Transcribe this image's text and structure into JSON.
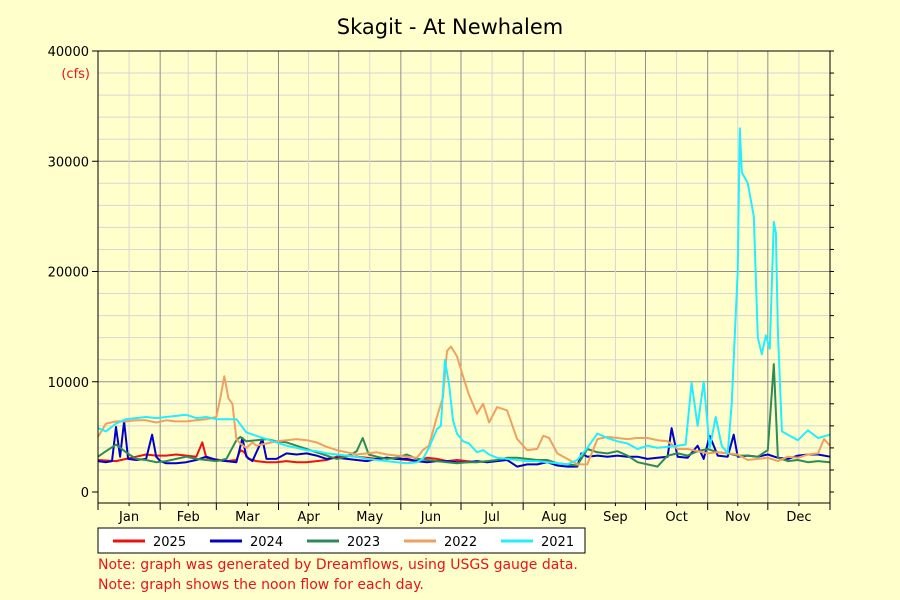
{
  "chart_data": {
    "type": "line",
    "title": "Skagit - At Newhalem",
    "ylabel": "(cfs)",
    "xlabel": "",
    "ylim": [
      0,
      40000
    ],
    "yticks": [
      0,
      10000,
      20000,
      30000,
      40000
    ],
    "ytick_labels": [
      "0",
      "10000",
      "20000",
      "30000",
      "40000"
    ],
    "x_unit": "day of year",
    "xlim": [
      1,
      366
    ],
    "months": [
      "Jan",
      "Feb",
      "Mar",
      "Apr",
      "May",
      "Jun",
      "Jul",
      "Aug",
      "Sep",
      "Oct",
      "Nov",
      "Dec"
    ],
    "grid": true,
    "legend_position": "bottom-left",
    "series": [
      {
        "name": "2025",
        "color": "#ee1111",
        "x": [
          1,
          10,
          15,
          20,
          25,
          30,
          35,
          40,
          45,
          50,
          53,
          55,
          58,
          62,
          65,
          70,
          72,
          74,
          76,
          80,
          85,
          90,
          95,
          100,
          105,
          110,
          115,
          120,
          125,
          130,
          135,
          140,
          145,
          150,
          155,
          160,
          165,
          170,
          175,
          180,
          185,
          190
        ],
        "y": [
          2900,
          2800,
          3000,
          3200,
          3400,
          3300,
          3300,
          3400,
          3300,
          3200,
          4500,
          3100,
          3000,
          2900,
          2800,
          2900,
          3800,
          3600,
          3000,
          2800,
          2700,
          2700,
          2800,
          2700,
          2700,
          2800,
          2900,
          3200,
          3300,
          3200,
          3100,
          3000,
          3100,
          3000,
          2900,
          2800,
          3100,
          3000,
          2800,
          2900,
          2800,
          2700
        ]
      },
      {
        "name": "2024",
        "color": "#0000cc",
        "x": [
          1,
          5,
          8,
          10,
          12,
          14,
          16,
          20,
          25,
          28,
          30,
          32,
          35,
          40,
          45,
          50,
          55,
          60,
          65,
          70,
          73,
          75,
          78,
          80,
          83,
          85,
          90,
          95,
          100,
          105,
          110,
          115,
          120,
          125,
          130,
          135,
          140,
          145,
          150,
          155,
          160,
          165,
          170,
          175,
          180,
          185,
          190,
          195,
          200,
          205,
          210,
          215,
          220,
          225,
          230,
          235,
          240,
          242,
          245,
          250,
          255,
          260,
          265,
          270,
          275,
          280,
          285,
          287,
          290,
          295,
          300,
          303,
          306,
          310,
          315,
          318,
          320,
          325,
          330,
          335,
          340,
          345,
          350,
          355,
          360,
          366
        ],
        "y": [
          2800,
          2700,
          2800,
          5900,
          3200,
          6400,
          3000,
          2900,
          3000,
          5200,
          3200,
          2800,
          2600,
          2600,
          2700,
          2900,
          3200,
          2900,
          2800,
          2700,
          4900,
          3200,
          2800,
          3600,
          4800,
          3000,
          3000,
          3500,
          3400,
          3500,
          3300,
          3000,
          3100,
          3000,
          2900,
          2800,
          3000,
          3100,
          3000,
          3000,
          2800,
          2700,
          2800,
          2800,
          2700,
          2700,
          2800,
          2700,
          2800,
          2900,
          2300,
          2500,
          2500,
          2700,
          2400,
          2300,
          2300,
          3500,
          3200,
          3300,
          3200,
          3300,
          3200,
          3200,
          3000,
          3100,
          3200,
          5800,
          3200,
          3100,
          4200,
          3000,
          5100,
          3300,
          3200,
          5200,
          3200,
          3300,
          3200,
          3400,
          3100,
          3000,
          3300,
          3400,
          3400,
          3200
        ]
      },
      {
        "name": "2023",
        "color": "#2e8b57",
        "x": [
          1,
          5,
          10,
          15,
          20,
          25,
          30,
          35,
          40,
          45,
          50,
          55,
          60,
          65,
          70,
          72,
          75,
          80,
          85,
          90,
          95,
          100,
          105,
          110,
          115,
          120,
          125,
          130,
          133,
          136,
          140,
          145,
          150,
          155,
          160,
          165,
          170,
          175,
          180,
          185,
          190,
          195,
          200,
          205,
          210,
          215,
          220,
          225,
          230,
          235,
          240,
          245,
          250,
          255,
          260,
          265,
          270,
          275,
          280,
          285,
          290,
          295,
          300,
          305,
          310,
          315,
          320,
          325,
          330,
          335,
          338,
          340,
          345,
          350,
          355,
          360,
          366
        ],
        "y": [
          3200,
          3700,
          4300,
          3600,
          3000,
          2900,
          2700,
          2800,
          3000,
          3200,
          3000,
          2900,
          2800,
          3000,
          4700,
          5000,
          4600,
          4700,
          4800,
          4600,
          4500,
          4200,
          3900,
          3600,
          3300,
          3000,
          3200,
          3700,
          4900,
          3400,
          3200,
          3000,
          3100,
          3400,
          3000,
          2900,
          2800,
          2700,
          2600,
          2700,
          2700,
          2800,
          2900,
          3100,
          3100,
          3000,
          2900,
          2900,
          2600,
          2500,
          2400,
          3900,
          3600,
          3500,
          3700,
          3300,
          2700,
          2500,
          2300,
          3300,
          3500,
          3300,
          3700,
          3900,
          3600,
          3500,
          3300,
          3300,
          3200,
          3800,
          11600,
          3100,
          2800,
          2900,
          2700,
          2800,
          2700
        ]
      },
      {
        "name": "2022",
        "color": "#f0a060",
        "x": [
          1,
          5,
          10,
          15,
          20,
          25,
          30,
          35,
          40,
          45,
          50,
          55,
          60,
          62,
          64,
          66,
          68,
          70,
          72,
          75,
          78,
          80,
          85,
          90,
          95,
          100,
          105,
          110,
          115,
          120,
          125,
          130,
          135,
          140,
          145,
          150,
          155,
          160,
          163,
          166,
          170,
          173,
          175,
          177,
          180,
          183,
          186,
          190,
          193,
          196,
          200,
          205,
          210,
          215,
          220,
          223,
          226,
          230,
          235,
          240,
          245,
          250,
          255,
          260,
          265,
          270,
          275,
          280,
          285,
          290,
          295,
          300,
          305,
          310,
          315,
          320,
          325,
          330,
          335,
          340,
          345,
          350,
          355,
          360,
          363,
          366
        ],
        "y": [
          5000,
          6200,
          6400,
          6400,
          6500,
          6500,
          6300,
          6500,
          6400,
          6400,
          6500,
          6600,
          6800,
          8500,
          10500,
          8500,
          8000,
          4800,
          4400,
          4000,
          4500,
          4200,
          4400,
          4600,
          4700,
          4800,
          4700,
          4500,
          4100,
          3800,
          3600,
          3400,
          3500,
          3600,
          3400,
          3300,
          3200,
          3100,
          3800,
          4200,
          6800,
          8600,
          12800,
          13200,
          12300,
          10500,
          8800,
          7100,
          8000,
          6300,
          7700,
          7400,
          4800,
          3800,
          3900,
          5100,
          4900,
          3500,
          3000,
          2500,
          2500,
          4800,
          5000,
          4900,
          4800,
          4900,
          4900,
          4700,
          4600,
          3900,
          3900,
          3700,
          3500,
          3600,
          3500,
          3400,
          2900,
          3000,
          3100,
          2800,
          3200,
          3100,
          3400,
          3500,
          4800,
          4200
        ]
      },
      {
        "name": "2021",
        "color": "#22eeff",
        "x": [
          1,
          5,
          10,
          15,
          20,
          25,
          30,
          35,
          40,
          45,
          50,
          55,
          60,
          65,
          70,
          75,
          80,
          85,
          90,
          95,
          100,
          105,
          110,
          115,
          120,
          125,
          130,
          135,
          140,
          145,
          150,
          155,
          160,
          163,
          166,
          170,
          172,
          174,
          176,
          178,
          180,
          183,
          186,
          190,
          193,
          196,
          200,
          205,
          210,
          215,
          220,
          225,
          230,
          235,
          240,
          245,
          250,
          255,
          260,
          265,
          270,
          275,
          280,
          285,
          290,
          294,
          297,
          300,
          303,
          306,
          309,
          312,
          315,
          317,
          318,
          320,
          321,
          322,
          325,
          328,
          330,
          332,
          334,
          336,
          338,
          339,
          340,
          342,
          345,
          350,
          355,
          360,
          366
        ],
        "y": [
          5800,
          5500,
          6200,
          6600,
          6700,
          6800,
          6700,
          6800,
          6900,
          7000,
          6700,
          6800,
          6600,
          6600,
          6600,
          5400,
          5100,
          4800,
          4500,
          4200,
          4000,
          3800,
          3700,
          3500,
          3400,
          3300,
          3200,
          3000,
          2900,
          2800,
          2700,
          2600,
          2700,
          3000,
          4000,
          5700,
          6000,
          12000,
          9800,
          6500,
          5300,
          4600,
          4400,
          3600,
          3800,
          3400,
          3100,
          3000,
          2900,
          2800,
          2800,
          2700,
          2600,
          2500,
          2900,
          4000,
          5300,
          4900,
          4600,
          4400,
          3900,
          4200,
          4000,
          4100,
          4200,
          4300,
          9900,
          6000,
          10000,
          4000,
          6800,
          4200,
          3500,
          8000,
          12000,
          20000,
          33000,
          29000,
          28000,
          25000,
          14000,
          12500,
          14200,
          13000,
          24500,
          23500,
          14500,
          5500,
          5200,
          4700,
          5600,
          4900,
          5200
        ]
      }
    ]
  },
  "notes": [
    "Note: graph was generated by Dreamflows, using USGS gauge data.",
    "Note: graph shows the noon flow for each day."
  ]
}
